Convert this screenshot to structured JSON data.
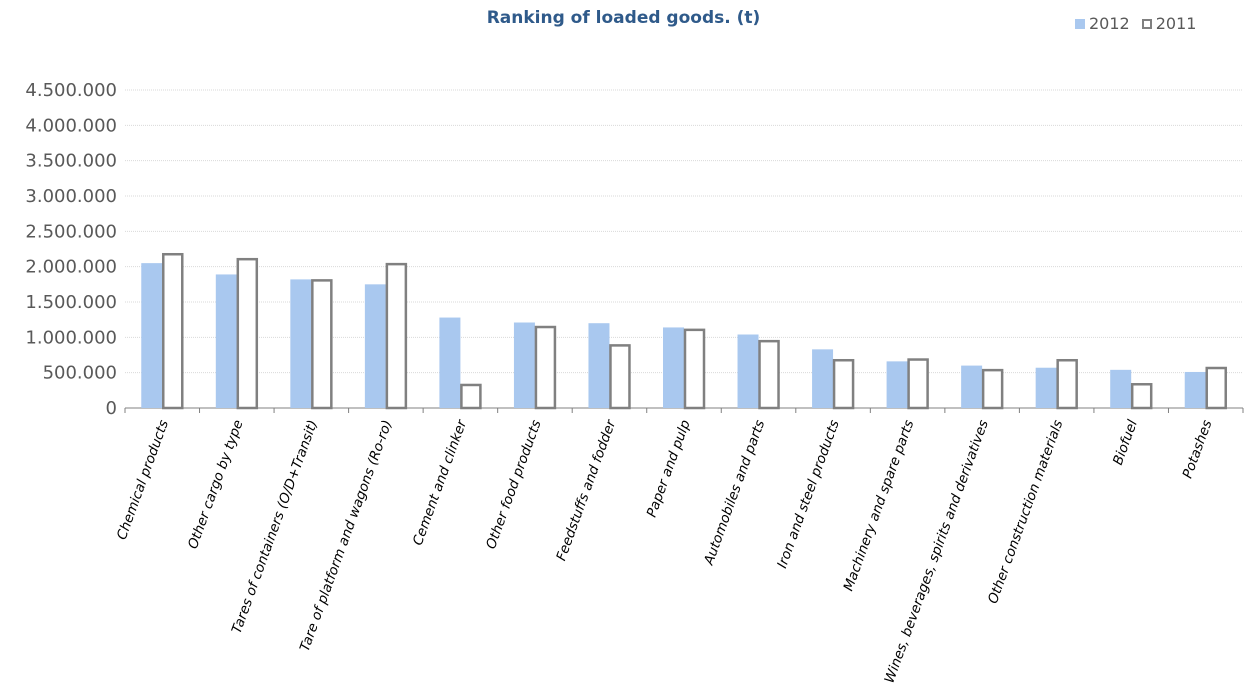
{
  "chart_data": {
    "type": "bar",
    "title": "Ranking of loaded goods. (t)",
    "categories": [
      "Chemical products",
      "Other cargo by type",
      "Tares of containers (O/D+Transit)",
      "Tare of platform and wagons (Ro-ro)",
      "Cement and clinker",
      "Other food products",
      "Feedstuffs and fodder",
      "Paper and pulp",
      "Automobiles and parts",
      "Iron and steel products",
      "Machinery and spare parts",
      "Wines, beverages, spirits and derivatives",
      "Other construction materials",
      "Biofuel",
      "Potashes"
    ],
    "series": [
      {
        "name": "2012",
        "color": "#a9c8ef",
        "values": [
          2050000,
          1890000,
          1820000,
          1750000,
          1280000,
          1210000,
          1200000,
          1140000,
          1040000,
          830000,
          660000,
          600000,
          570000,
          540000,
          510000
        ]
      },
      {
        "name": "2011",
        "color": "#ffffff",
        "stroke": "#808080",
        "values": [
          2190000,
          2120000,
          1820000,
          2050000,
          340000,
          1160000,
          900000,
          1120000,
          960000,
          690000,
          700000,
          550000,
          690000,
          350000,
          580000
        ]
      }
    ],
    "ylim": [
      0,
      4500000
    ],
    "yticks": [
      "0",
      "500.000",
      "1.000.000",
      "1.500.000",
      "2.000.000",
      "2.500.000",
      "3.000.000",
      "3.500.000",
      "4.000.000",
      "4.500.000"
    ],
    "grid": true,
    "legend_position": "top-right"
  }
}
